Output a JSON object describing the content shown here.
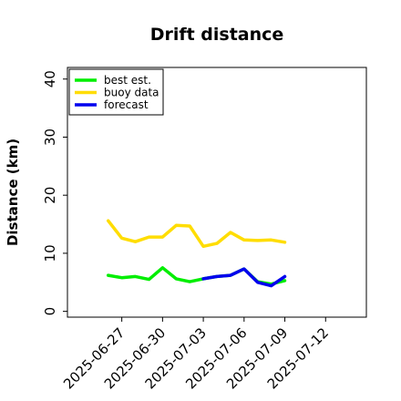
{
  "chart_data": {
    "type": "line",
    "title": "Drift distance",
    "xlabel": "",
    "ylabel": "Distance (km)",
    "ylim": [
      -1,
      42
    ],
    "yticks": [
      0,
      10,
      20,
      30,
      40
    ],
    "xlim": [
      "2025-06-23",
      "2025-07-15"
    ],
    "xticks": [
      "2025-06-27",
      "2025-06-30",
      "2025-07-03",
      "2025-07-06",
      "2025-07-09",
      "2025-07-12"
    ],
    "highlight_tick": "2025-07-03",
    "highlight_color": "#2e8b2e",
    "legend": {
      "placement": "top-left",
      "entries": [
        "best est.",
        "buoy data",
        "forecast"
      ]
    },
    "grid": false,
    "series": [
      {
        "name": "best est.",
        "color": "#00ee00",
        "x": [
          "2025-06-26",
          "2025-06-27",
          "2025-06-28",
          "2025-06-29",
          "2025-06-30",
          "2025-07-01",
          "2025-07-02",
          "2025-07-03",
          "2025-07-04",
          "2025-07-05",
          "2025-07-06",
          "2025-07-07",
          "2025-07-08",
          "2025-07-09"
        ],
        "y": [
          6.2,
          5.8,
          6.0,
          5.5,
          7.5,
          5.6,
          5.1,
          5.6,
          6.0,
          6.2,
          7.3,
          5.1,
          4.7,
          5.3
        ]
      },
      {
        "name": "buoy data",
        "color": "#ffdd00",
        "x": [
          "2025-06-26",
          "2025-06-27",
          "2025-06-28",
          "2025-06-29",
          "2025-06-30",
          "2025-07-01",
          "2025-07-02",
          "2025-07-03",
          "2025-07-04",
          "2025-07-05",
          "2025-07-06",
          "2025-07-07",
          "2025-07-08",
          "2025-07-09"
        ],
        "y": [
          15.6,
          12.6,
          12.0,
          12.8,
          12.8,
          14.8,
          14.7,
          11.2,
          11.7,
          13.6,
          12.3,
          12.2,
          12.3,
          11.9
        ]
      },
      {
        "name": "forecast",
        "color": "#0000ee",
        "x": [
          "2025-07-03",
          "2025-07-04",
          "2025-07-05",
          "2025-07-06",
          "2025-07-07",
          "2025-07-08",
          "2025-07-09"
        ],
        "y": [
          5.6,
          6.0,
          6.2,
          7.3,
          5.0,
          4.4,
          6.0
        ]
      }
    ]
  }
}
